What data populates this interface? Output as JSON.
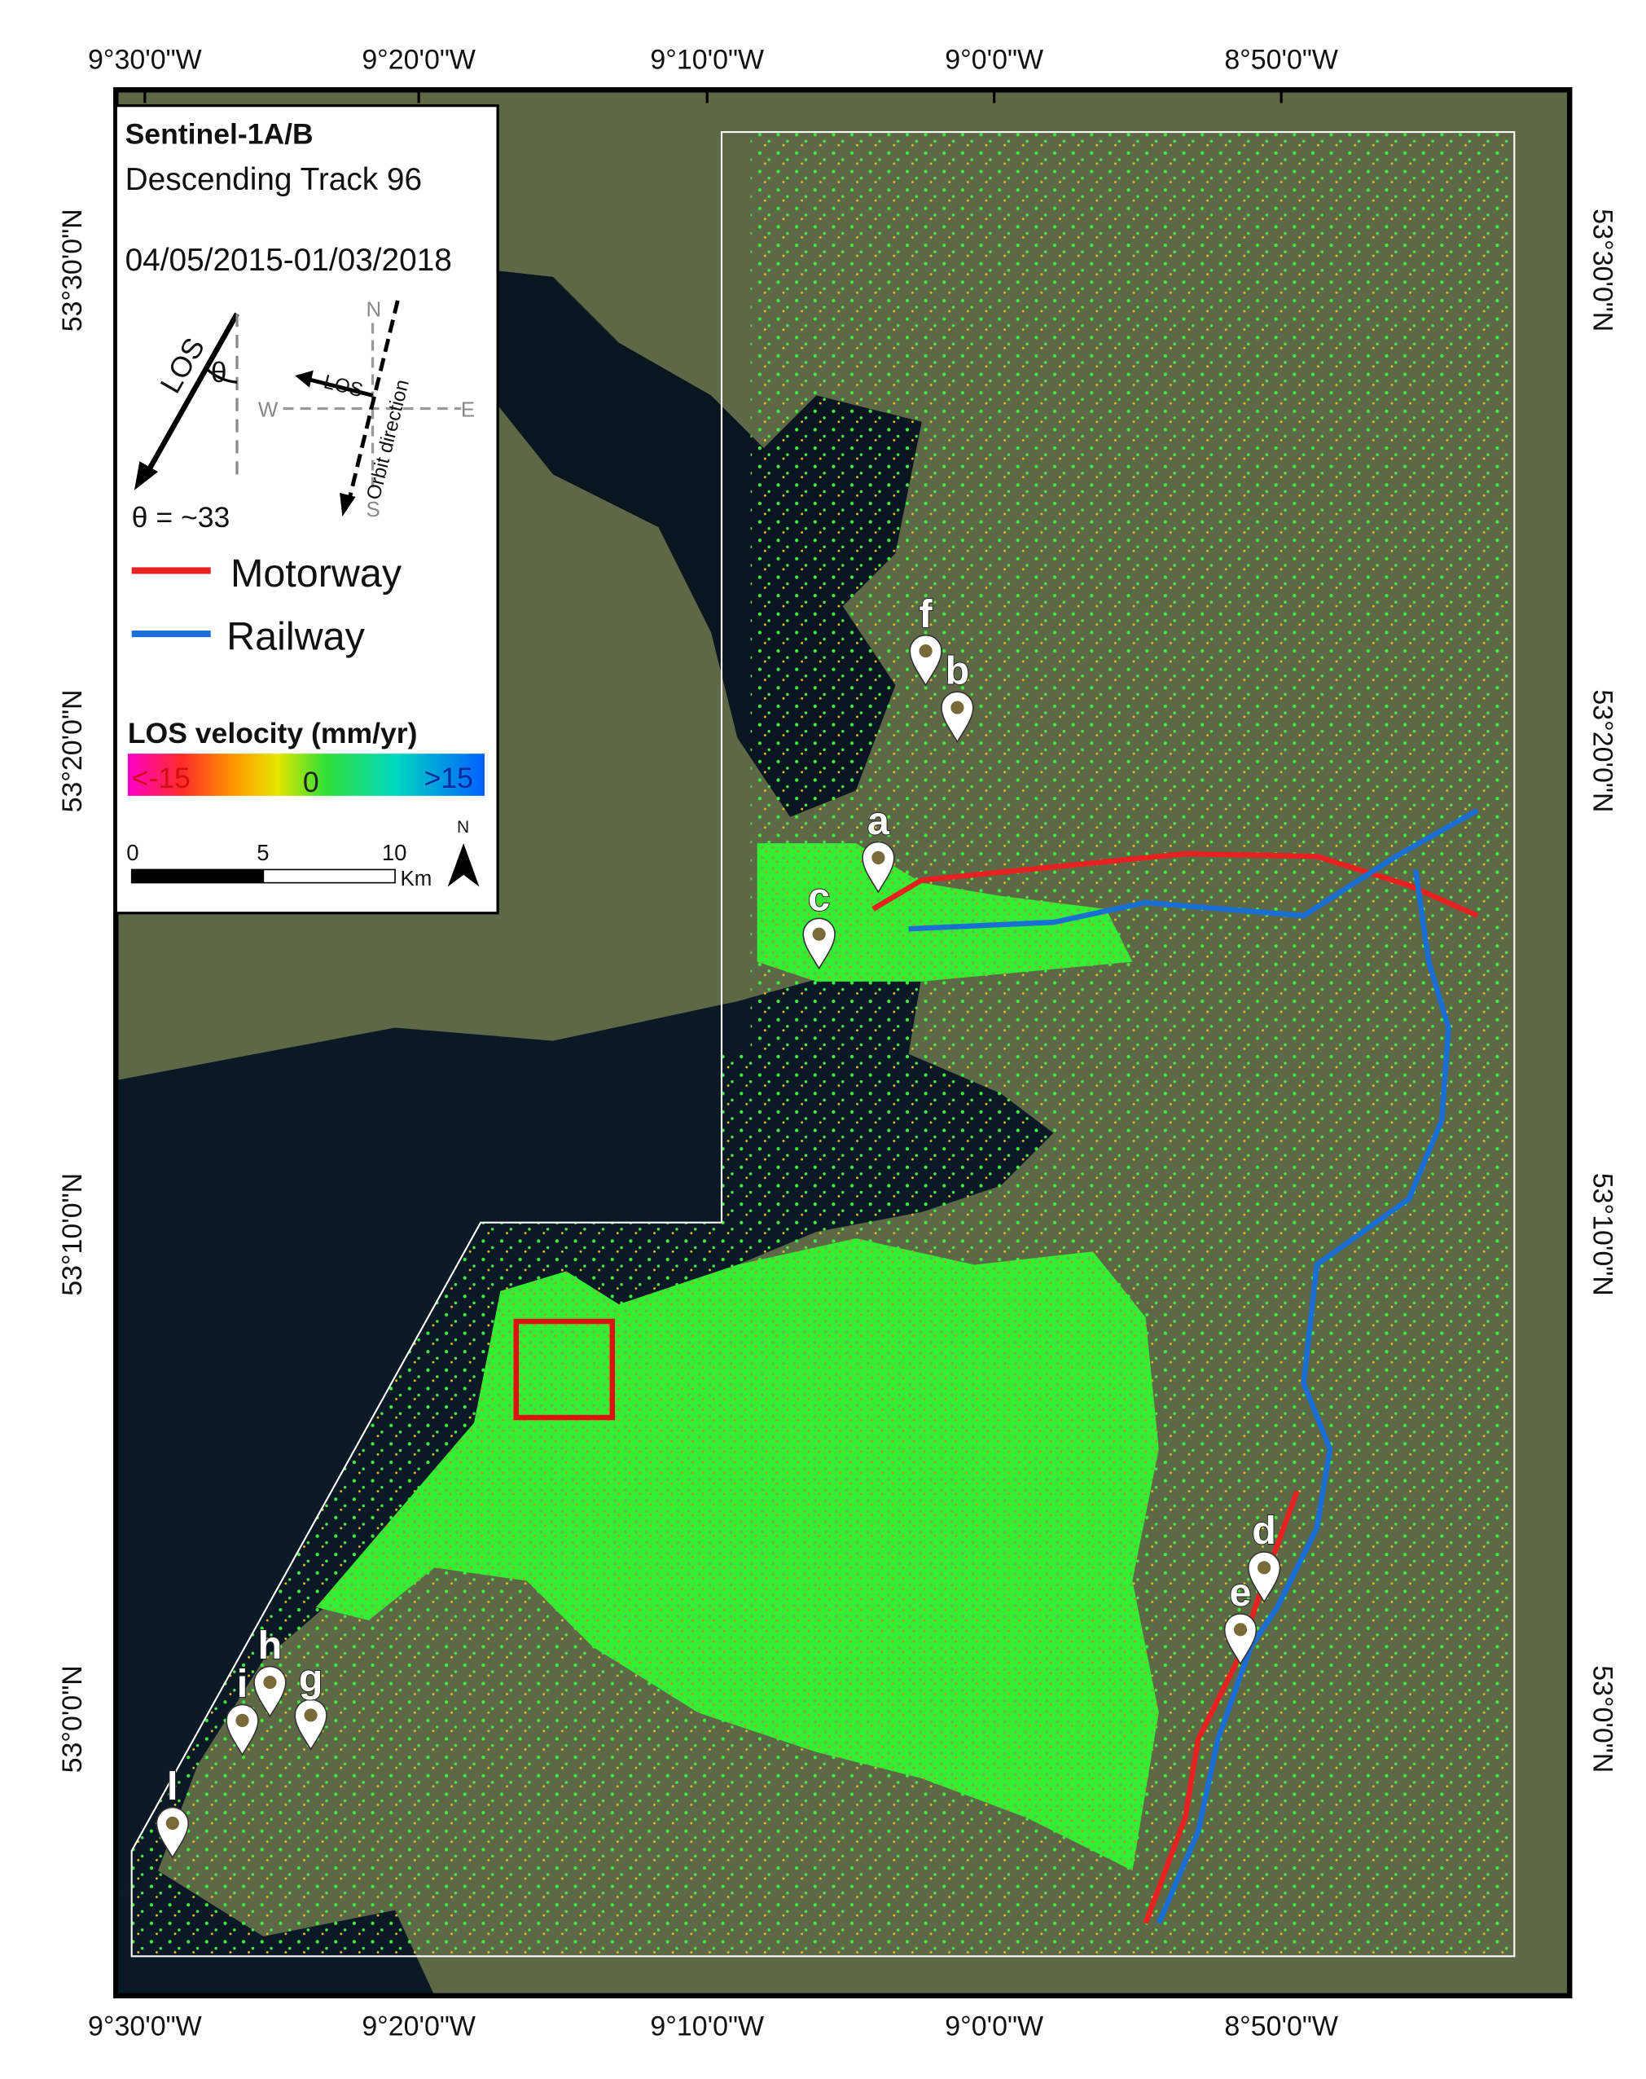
{
  "lon_labels": [
    "9°30'0\"W",
    "9°20'0\"W",
    "9°10'0\"W",
    "9°0'0\"W",
    "8°50'0\"W"
  ],
  "lat_labels": [
    "53°30'0\"N",
    "53°20'0\"N",
    "53°10'0\"N",
    "53°0'0\"N"
  ],
  "legend": {
    "title": "Sentinel-1A/B",
    "track": "Descending Track 96",
    "dates": "04/05/2015-01/03/2018",
    "los": "LOS",
    "theta_symbol": "θ",
    "theta": "θ = ~33",
    "compass": {
      "north": "N",
      "east": "E",
      "south": "S",
      "west": "W",
      "los": "LOS",
      "orbit": "Orbit direction"
    },
    "motorway": "Motorway",
    "railway": "Railway",
    "velocity_title": "LOS velocity (mm/yr)",
    "velocity_min": "<-15",
    "velocity_mid": "0",
    "velocity_max": ">15",
    "scale": [
      "0",
      "5",
      "10"
    ],
    "scale_unit": "Km",
    "north": "N"
  },
  "markers": [
    {
      "label": "f"
    },
    {
      "label": "b"
    },
    {
      "label": "a"
    },
    {
      "label": "c"
    },
    {
      "label": "d"
    },
    {
      "label": "e"
    },
    {
      "label": "h"
    },
    {
      "label": "i"
    },
    {
      "label": "g"
    },
    {
      "label": "l"
    }
  ]
}
